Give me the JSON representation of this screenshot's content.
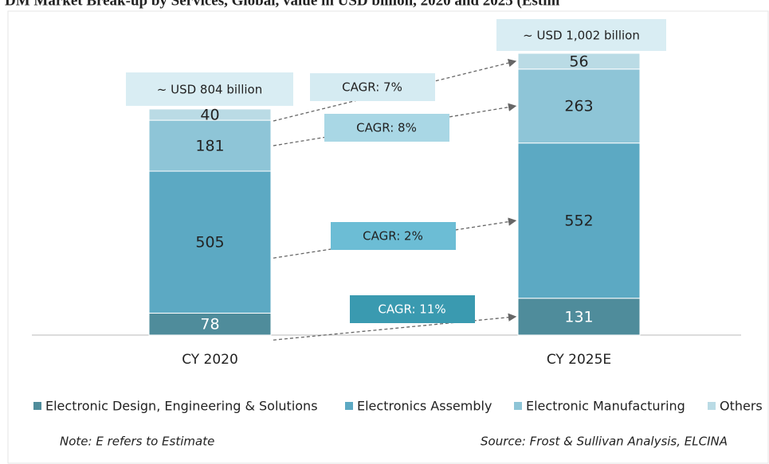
{
  "chart_data": {
    "type": "stacked_bar",
    "title": "DM Market Break-up by Services, Global, value in USD billion, 2020 and 2025 (Estim",
    "categories": [
      "CY 2020",
      "CY 2025E"
    ],
    "series": [
      {
        "name": "Electronic Design, Engineering & Solutions",
        "color": "#4f8c9b",
        "values": [
          78,
          131
        ]
      },
      {
        "name": "Electronics Assembly",
        "color": "#5ca9c3",
        "values": [
          505,
          552
        ]
      },
      {
        "name": "Electronic Manufacturing",
        "color": "#8ec5d7",
        "values": [
          181,
          263
        ]
      },
      {
        "name": "Others",
        "color": "#badbe5",
        "values": [
          40,
          56
        ]
      }
    ],
    "total_labels": [
      "~ USD 804 billion",
      "~ USD 1,002 billion"
    ],
    "cagr_labels": [
      "CAGR: 11%",
      "CAGR: 2%",
      "CAGR: 8%",
      "CAGR: 7%"
    ],
    "note": "Note: E refers to Estimate",
    "source": "Source: Frost & Sullivan Analysis, ELCINA"
  }
}
